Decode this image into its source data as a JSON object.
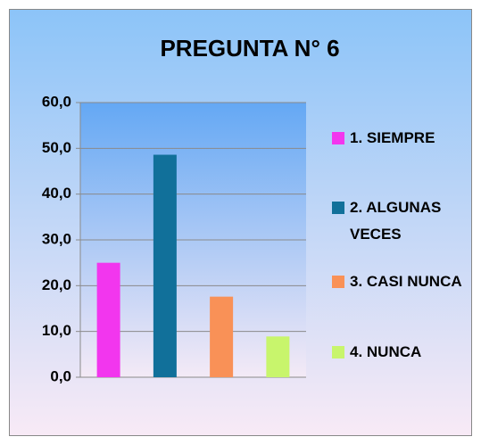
{
  "chart_data": {
    "type": "bar",
    "title": "PREGUNTA N° 6",
    "categories": [
      "1. SIEMPRE",
      "2. ALGUNAS VECES",
      "3. CASI NUNCA",
      "4. NUNCA"
    ],
    "values": [
      25.0,
      48.6,
      17.6,
      8.9
    ],
    "colors": [
      "#f236ee",
      "#11709a",
      "#f99157",
      "#c8f56c"
    ],
    "ylim": [
      0,
      60
    ],
    "yticks": [
      {
        "value": 0,
        "label": "0,0"
      },
      {
        "value": 10,
        "label": "10,0"
      },
      {
        "value": 20,
        "label": "20,0"
      },
      {
        "value": 30,
        "label": "30,0"
      },
      {
        "value": 40,
        "label": "40,0"
      },
      {
        "value": 50,
        "label": "50,0"
      },
      {
        "value": 60,
        "label": "60,0"
      }
    ],
    "grid": true,
    "legend": "right"
  }
}
